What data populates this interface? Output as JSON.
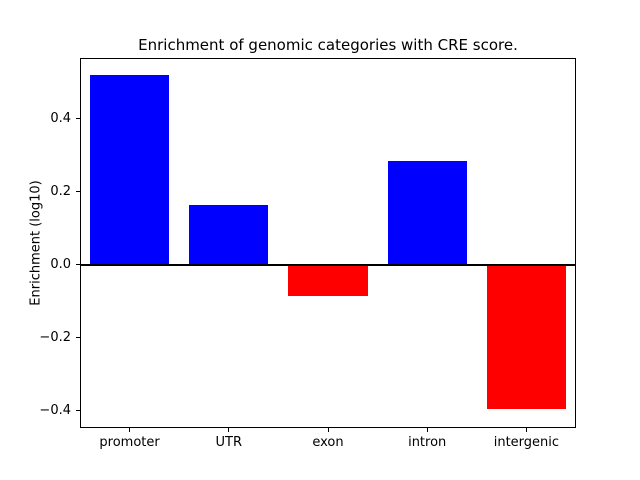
{
  "chart_data": {
    "type": "bar",
    "title": "Enrichment of genomic categories with CRE score.",
    "xlabel": "",
    "ylabel": "Enrichment (log10)",
    "categories": [
      "promoter",
      "UTR",
      "exon",
      "intron",
      "intergenic"
    ],
    "values": [
      0.52,
      0.165,
      -0.085,
      0.285,
      -0.395
    ],
    "ylim": [
      -0.447,
      0.567
    ],
    "yticks": [
      {
        "value": -0.4,
        "label": "−0.4"
      },
      {
        "value": -0.2,
        "label": "−0.2"
      },
      {
        "value": 0.0,
        "label": "0.0"
      },
      {
        "value": 0.2,
        "label": "0.2"
      },
      {
        "value": 0.4,
        "label": "0.4"
      }
    ],
    "positive_color": "#0000ff",
    "negative_color": "#ff0000",
    "grid": false,
    "legend_position": "none"
  }
}
